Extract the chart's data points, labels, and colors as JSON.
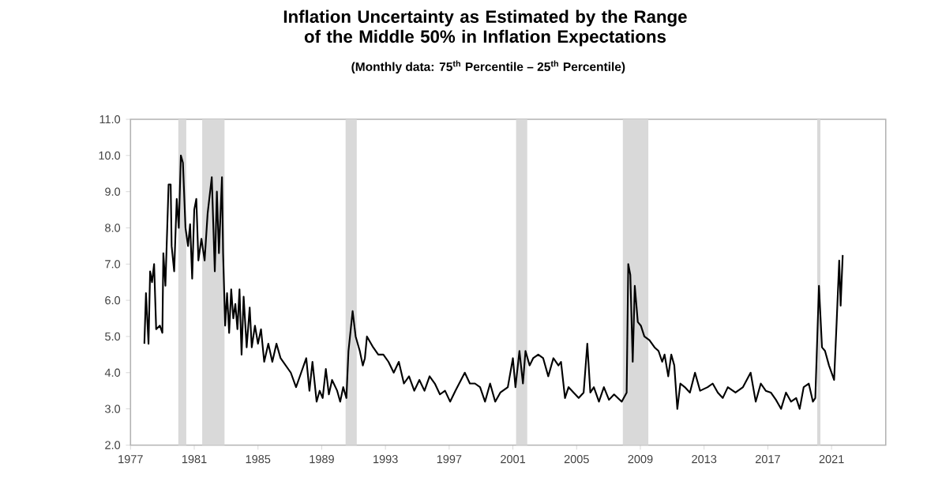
{
  "chart_data": {
    "type": "line",
    "title": "Inflation Uncertainty as Estimated by the Range of the Middle 50% in Inflation Expectations",
    "subtitle": "(Monthly data:  75$^{th}$ Percentile – 25$^{th}$ Percentile)",
    "xlim": [
      1977,
      2024.4
    ],
    "xticks": [
      1977,
      1981,
      1985,
      1989,
      1993,
      1997,
      2001,
      2005,
      2009,
      2013,
      2017,
      2021
    ],
    "ylim": [
      2,
      11
    ],
    "yticks": [
      {
        "value": 2,
        "label": "2.0"
      },
      {
        "value": 3,
        "label": "3.0"
      },
      {
        "value": 4,
        "label": "4.0"
      },
      {
        "value": 5,
        "label": "5.0"
      },
      {
        "value": 6,
        "label": "6.0"
      },
      {
        "value": 7,
        "label": "7.0"
      },
      {
        "value": 8,
        "label": "8.0"
      },
      {
        "value": 9,
        "label": "9.0"
      },
      {
        "value": 10,
        "label": "10.0"
      },
      {
        "value": 11,
        "label": "11.0"
      }
    ],
    "grid": false,
    "bands": [
      {
        "axis": "x",
        "from": 1980.0,
        "to": 1980.5,
        "color": "#d9d9d9"
      },
      {
        "axis": "x",
        "from": 1981.5,
        "to": 1982.9,
        "color": "#d9d9d9"
      },
      {
        "axis": "x",
        "from": 1990.5,
        "to": 1991.2,
        "color": "#d9d9d9"
      },
      {
        "axis": "x",
        "from": 2001.2,
        "to": 2001.9,
        "color": "#d9d9d9"
      },
      {
        "axis": "x",
        "from": 2007.9,
        "to": 2009.5,
        "color": "#d9d9d9"
      },
      {
        "axis": "x",
        "from": 2020.1,
        "to": 2020.3,
        "color": "#d9d9d9"
      }
    ],
    "series": [
      {
        "color": "#000000",
        "x": [
          1977.87,
          1977.97,
          1978.13,
          1978.23,
          1978.35,
          1978.48,
          1978.61,
          1978.84,
          1979.0,
          1979.06,
          1979.19,
          1979.39,
          1979.52,
          1979.58,
          1979.74,
          1979.9,
          1980.03,
          1980.16,
          1980.29,
          1980.45,
          1980.61,
          1980.74,
          1980.87,
          1981.0,
          1981.13,
          1981.26,
          1981.45,
          1981.65,
          1981.84,
          1982.1,
          1982.29,
          1982.42,
          1982.55,
          1982.74,
          1982.81,
          1982.94,
          1983.06,
          1983.19,
          1983.32,
          1983.45,
          1983.58,
          1983.71,
          1983.84,
          1983.97,
          1984.1,
          1984.29,
          1984.48,
          1984.61,
          1984.81,
          1985.0,
          1985.19,
          1985.39,
          1985.65,
          1985.9,
          1986.16,
          1986.42,
          1986.74,
          1987.06,
          1987.39,
          1987.71,
          1988.03,
          1988.23,
          1988.42,
          1988.68,
          1988.87,
          1989.06,
          1989.26,
          1989.45,
          1989.65,
          1989.97,
          1990.16,
          1990.35,
          1990.55,
          1990.68,
          1990.94,
          1991.13,
          1991.39,
          1991.58,
          1991.71,
          1991.84,
          1992.23,
          1992.55,
          1992.87,
          1993.19,
          1993.52,
          1993.84,
          1994.16,
          1994.48,
          1994.81,
          1995.13,
          1995.45,
          1995.77,
          1996.1,
          1996.42,
          1996.74,
          1997.06,
          1997.39,
          1997.98,
          1998.3,
          1998.62,
          1998.94,
          1999.25,
          1999.57,
          1999.89,
          2000.21,
          2000.68,
          2001.0,
          2001.16,
          2001.41,
          2001.63,
          2001.79,
          2002.05,
          2002.27,
          2002.59,
          2002.9,
          2003.22,
          2003.54,
          2003.86,
          2004.02,
          2004.27,
          2004.49,
          2004.81,
          2005.13,
          2005.44,
          2005.67,
          2005.86,
          2006.08,
          2006.4,
          2006.71,
          2007.03,
          2007.35,
          2007.83,
          2008.14,
          2008.24,
          2008.37,
          2008.52,
          2008.65,
          2008.84,
          2009.03,
          2009.25,
          2009.57,
          2009.89,
          2010.14,
          2010.37,
          2010.52,
          2010.75,
          2010.94,
          2011.13,
          2011.32,
          2011.51,
          2011.79,
          2012.11,
          2012.43,
          2012.75,
          2013.22,
          2013.54,
          2013.86,
          2014.17,
          2014.49,
          2014.97,
          2015.44,
          2015.92,
          2016.24,
          2016.56,
          2016.87,
          2017.19,
          2017.51,
          2017.83,
          2018.14,
          2018.46,
          2018.78,
          2019.0,
          2019.25,
          2019.57,
          2019.83,
          2019.98,
          2020.21,
          2020.4,
          2020.59,
          2020.84,
          2021.16,
          2021.32,
          2021.48,
          2021.57,
          2021.7
        ],
        "values": [
          4.8,
          6.2,
          4.8,
          6.8,
          6.5,
          7.0,
          5.2,
          5.3,
          5.1,
          7.3,
          6.4,
          9.2,
          9.2,
          7.5,
          6.8,
          8.8,
          8.0,
          10.0,
          9.8,
          8.0,
          7.5,
          8.1,
          6.6,
          8.5,
          8.8,
          7.1,
          7.7,
          7.1,
          8.4,
          9.4,
          6.8,
          9.0,
          7.3,
          9.4,
          7.3,
          5.3,
          6.2,
          5.1,
          6.3,
          5.5,
          5.9,
          5.2,
          6.3,
          4.5,
          6.1,
          4.7,
          5.8,
          4.7,
          5.3,
          4.8,
          5.2,
          4.3,
          4.8,
          4.3,
          4.8,
          4.4,
          4.2,
          4.0,
          3.6,
          4.0,
          4.4,
          3.5,
          4.3,
          3.2,
          3.5,
          3.3,
          4.1,
          3.4,
          3.8,
          3.5,
          3.2,
          3.6,
          3.3,
          4.6,
          5.7,
          5.0,
          4.6,
          4.2,
          4.4,
          5.0,
          4.7,
          4.5,
          4.5,
          4.3,
          4.0,
          4.3,
          3.7,
          3.9,
          3.5,
          3.8,
          3.5,
          3.9,
          3.7,
          3.4,
          3.5,
          3.2,
          3.5,
          4.0,
          3.7,
          3.7,
          3.6,
          3.2,
          3.7,
          3.2,
          3.45,
          3.6,
          4.4,
          3.6,
          4.6,
          3.7,
          4.6,
          4.2,
          4.4,
          4.5,
          4.4,
          3.9,
          4.4,
          4.2,
          4.3,
          3.3,
          3.6,
          3.45,
          3.3,
          3.45,
          4.8,
          3.45,
          3.6,
          3.2,
          3.6,
          3.25,
          3.4,
          3.2,
          3.45,
          7.0,
          6.7,
          4.3,
          6.4,
          5.4,
          5.3,
          5.0,
          4.9,
          4.7,
          4.6,
          4.3,
          4.5,
          3.9,
          4.5,
          4.2,
          3.0,
          3.7,
          3.6,
          3.45,
          4.0,
          3.5,
          3.6,
          3.7,
          3.45,
          3.3,
          3.6,
          3.45,
          3.6,
          4.0,
          3.2,
          3.7,
          3.5,
          3.45,
          3.25,
          3.0,
          3.45,
          3.2,
          3.3,
          3.0,
          3.6,
          3.7,
          3.2,
          3.3,
          6.4,
          4.7,
          4.6,
          4.2,
          3.8,
          5.4,
          7.1,
          5.85,
          7.25
        ]
      }
    ]
  }
}
